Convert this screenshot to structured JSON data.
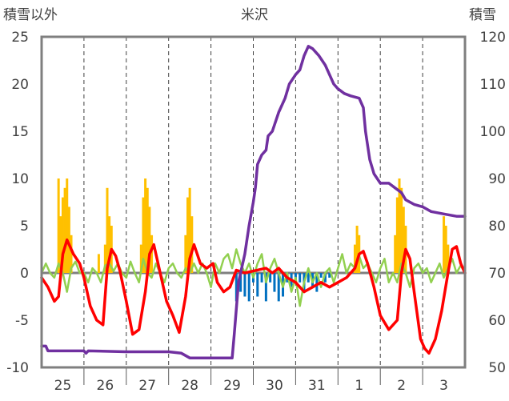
{
  "chart_data": {
    "type": "line",
    "title": "米沢",
    "y_left_label": "積雪以外",
    "y_right_label": "積雪",
    "y_left_range": [
      -10,
      25
    ],
    "y_right_range": [
      50,
      120
    ],
    "y_left_ticks": [
      "-10",
      "-5",
      "0",
      "5",
      "10",
      "15",
      "20",
      "25"
    ],
    "y_right_ticks": [
      "50",
      "60",
      "70",
      "80",
      "90",
      "100",
      "110",
      "120"
    ],
    "x_range": [
      0,
      10
    ],
    "x_ticks": [
      {
        "label": "25",
        "x": 0.5
      },
      {
        "label": "26",
        "x": 1.5
      },
      {
        "label": "27",
        "x": 2.5
      },
      {
        "label": "28",
        "x": 3.5
      },
      {
        "label": "29",
        "x": 4.5
      },
      {
        "label": "30",
        "x": 5.5
      },
      {
        "label": "31",
        "x": 6.5
      },
      {
        "label": "1",
        "x": 7.5
      },
      {
        "label": "2",
        "x": 8.5
      },
      {
        "label": "3",
        "x": 9.5
      }
    ],
    "grid": "vertical dashed at day boundaries",
    "colors": {
      "temperature": "#ff0000",
      "wind": "#92d050",
      "snow_depth": "#7030a0",
      "precip_bar": "#ffc000",
      "negative_bar": "#0070c0",
      "frame": "#7f7f7f"
    },
    "series": [
      {
        "role": "temperature",
        "axis": "left",
        "points": [
          [
            0.0,
            -0.5
          ],
          [
            0.15,
            -1.5
          ],
          [
            0.3,
            -3.0
          ],
          [
            0.4,
            -2.5
          ],
          [
            0.5,
            2.0
          ],
          [
            0.6,
            3.5
          ],
          [
            0.75,
            2.0
          ],
          [
            0.9,
            1.0
          ],
          [
            1.0,
            -0.5
          ],
          [
            1.15,
            -3.5
          ],
          [
            1.3,
            -5.0
          ],
          [
            1.45,
            -5.5
          ],
          [
            1.55,
            0.5
          ],
          [
            1.65,
            2.5
          ],
          [
            1.75,
            1.8
          ],
          [
            1.85,
            0.2
          ],
          [
            2.0,
            -3.0
          ],
          [
            2.15,
            -6.5
          ],
          [
            2.3,
            -6.0
          ],
          [
            2.45,
            -2.0
          ],
          [
            2.55,
            2.0
          ],
          [
            2.65,
            3.0
          ],
          [
            2.75,
            1.0
          ],
          [
            2.85,
            -1.0
          ],
          [
            2.95,
            -3.0
          ],
          [
            3.1,
            -4.5
          ],
          [
            3.25,
            -6.3
          ],
          [
            3.4,
            -2.5
          ],
          [
            3.5,
            1.5
          ],
          [
            3.6,
            3.0
          ],
          [
            3.75,
            1.0
          ],
          [
            3.9,
            0.5
          ],
          [
            4.05,
            1.0
          ],
          [
            4.15,
            -1.0
          ],
          [
            4.3,
            -2.0
          ],
          [
            4.45,
            -1.5
          ],
          [
            4.6,
            0.3
          ],
          [
            4.8,
            0.0
          ],
          [
            5.0,
            0.2
          ],
          [
            5.3,
            0.5
          ],
          [
            5.45,
            0.0
          ],
          [
            5.6,
            0.5
          ],
          [
            5.8,
            -0.5
          ],
          [
            6.0,
            -1.0
          ],
          [
            6.2,
            -2.0
          ],
          [
            6.4,
            -1.5
          ],
          [
            6.6,
            -1.0
          ],
          [
            6.8,
            -1.5
          ],
          [
            7.0,
            -1.0
          ],
          [
            7.2,
            -0.5
          ],
          [
            7.4,
            0.5
          ],
          [
            7.5,
            2.0
          ],
          [
            7.6,
            2.3
          ],
          [
            7.7,
            1.0
          ],
          [
            7.85,
            -1.5
          ],
          [
            8.0,
            -4.5
          ],
          [
            8.2,
            -6.0
          ],
          [
            8.4,
            -5.0
          ],
          [
            8.5,
            0.0
          ],
          [
            8.6,
            2.5
          ],
          [
            8.7,
            1.5
          ],
          [
            8.8,
            -2.0
          ],
          [
            8.95,
            -7.0
          ],
          [
            9.05,
            -8.0
          ],
          [
            9.15,
            -8.5
          ],
          [
            9.3,
            -7.0
          ],
          [
            9.45,
            -4.0
          ],
          [
            9.6,
            0.0
          ],
          [
            9.7,
            2.5
          ],
          [
            9.8,
            2.8
          ],
          [
            9.9,
            1.0
          ],
          [
            10.0,
            0.0
          ]
        ]
      },
      {
        "role": "wind",
        "axis": "left",
        "points": [
          [
            0.0,
            0.0
          ],
          [
            0.1,
            1.0
          ],
          [
            0.2,
            0.0
          ],
          [
            0.3,
            -0.5
          ],
          [
            0.4,
            1.0
          ],
          [
            0.5,
            0.0
          ],
          [
            0.6,
            -2.0
          ],
          [
            0.7,
            0.5
          ],
          [
            0.8,
            1.2
          ],
          [
            0.9,
            0.0
          ],
          [
            1.0,
            0.0
          ],
          [
            1.1,
            -1.0
          ],
          [
            1.2,
            0.5
          ],
          [
            1.3,
            0.0
          ],
          [
            1.4,
            -1.0
          ],
          [
            1.5,
            0.8
          ],
          [
            1.6,
            1.0
          ],
          [
            1.7,
            0.2
          ],
          [
            1.8,
            1.0
          ],
          [
            1.9,
            0.0
          ],
          [
            2.0,
            -0.5
          ],
          [
            2.1,
            1.2
          ],
          [
            2.2,
            0.0
          ],
          [
            2.3,
            -1.0
          ],
          [
            2.4,
            1.5
          ],
          [
            2.5,
            0.0
          ],
          [
            2.6,
            -0.5
          ],
          [
            2.7,
            1.0
          ],
          [
            2.8,
            0.0
          ],
          [
            2.9,
            -1.0
          ],
          [
            3.0,
            0.5
          ],
          [
            3.1,
            1.0
          ],
          [
            3.2,
            0.0
          ],
          [
            3.3,
            -0.5
          ],
          [
            3.4,
            0.5
          ],
          [
            3.5,
            0.0
          ],
          [
            3.6,
            1.0
          ],
          [
            3.7,
            0.0
          ],
          [
            3.8,
            1.0
          ],
          [
            3.9,
            0.0
          ],
          [
            4.0,
            -1.5
          ],
          [
            4.1,
            1.0
          ],
          [
            4.2,
            0.0
          ],
          [
            4.3,
            1.5
          ],
          [
            4.4,
            2.0
          ],
          [
            4.5,
            0.5
          ],
          [
            4.6,
            2.5
          ],
          [
            4.7,
            1.0
          ],
          [
            4.8,
            0.0
          ],
          [
            4.9,
            1.0
          ],
          [
            5.0,
            -0.5
          ],
          [
            5.1,
            1.0
          ],
          [
            5.2,
            2.0
          ],
          [
            5.3,
            -1.0
          ],
          [
            5.4,
            0.5
          ],
          [
            5.5,
            1.5
          ],
          [
            5.6,
            0.0
          ],
          [
            5.7,
            -1.5
          ],
          [
            5.8,
            0.0
          ],
          [
            5.9,
            -2.0
          ],
          [
            6.0,
            -0.5
          ],
          [
            6.1,
            -3.5
          ],
          [
            6.2,
            -1.0
          ],
          [
            6.3,
            0.5
          ],
          [
            6.4,
            -1.0
          ],
          [
            6.5,
            0.0
          ],
          [
            6.6,
            -1.5
          ],
          [
            6.7,
            0.0
          ],
          [
            6.8,
            0.5
          ],
          [
            6.9,
            -1.0
          ],
          [
            7.0,
            0.5
          ],
          [
            7.1,
            2.0
          ],
          [
            7.2,
            0.0
          ],
          [
            7.3,
            1.0
          ],
          [
            7.4,
            0.5
          ],
          [
            7.5,
            1.8
          ],
          [
            7.6,
            0.5
          ],
          [
            7.7,
            1.0
          ],
          [
            7.8,
            0.0
          ],
          [
            7.9,
            -1.0
          ],
          [
            8.0,
            0.5
          ],
          [
            8.1,
            1.5
          ],
          [
            8.2,
            -1.0
          ],
          [
            8.3,
            0.0
          ],
          [
            8.4,
            -1.0
          ],
          [
            8.5,
            1.0
          ],
          [
            8.6,
            0.0
          ],
          [
            8.7,
            -1.5
          ],
          [
            8.8,
            0.5
          ],
          [
            8.9,
            1.0
          ],
          [
            9.0,
            0.0
          ],
          [
            9.1,
            0.5
          ],
          [
            9.2,
            -1.0
          ],
          [
            9.3,
            0.0
          ],
          [
            9.4,
            1.0
          ],
          [
            9.5,
            -0.5
          ],
          [
            9.6,
            0.5
          ],
          [
            9.7,
            1.5
          ],
          [
            9.8,
            0.0
          ],
          [
            9.9,
            0.8
          ],
          [
            10.0,
            0.0
          ]
        ]
      },
      {
        "role": "snow_depth",
        "axis": "right",
        "points": [
          [
            0.0,
            54.5
          ],
          [
            0.1,
            54.5
          ],
          [
            0.15,
            53.5
          ],
          [
            1.0,
            53.5
          ],
          [
            1.05,
            53.0
          ],
          [
            1.1,
            53.5
          ],
          [
            2.0,
            53.3
          ],
          [
            3.0,
            53.3
          ],
          [
            3.3,
            53.0
          ],
          [
            3.5,
            52.0
          ],
          [
            4.0,
            52.0
          ],
          [
            4.1,
            52.0
          ],
          [
            4.5,
            52.0
          ],
          [
            4.55,
            57.0
          ],
          [
            4.65,
            68.0
          ],
          [
            4.8,
            74.0
          ],
          [
            4.9,
            80.0
          ],
          [
            5.0,
            85.0
          ],
          [
            5.05,
            88.0
          ],
          [
            5.1,
            93.0
          ],
          [
            5.2,
            95.0
          ],
          [
            5.3,
            96.0
          ],
          [
            5.35,
            99.0
          ],
          [
            5.45,
            100.0
          ],
          [
            5.6,
            104.0
          ],
          [
            5.75,
            107.0
          ],
          [
            5.85,
            110.0
          ],
          [
            6.0,
            112.0
          ],
          [
            6.1,
            113.0
          ],
          [
            6.2,
            116.0
          ],
          [
            6.3,
            118.0
          ],
          [
            6.4,
            117.5
          ],
          [
            6.55,
            116.0
          ],
          [
            6.7,
            114.0
          ],
          [
            6.8,
            112.0
          ],
          [
            6.9,
            110.0
          ],
          [
            7.0,
            109.0
          ],
          [
            7.15,
            108.0
          ],
          [
            7.3,
            107.5
          ],
          [
            7.5,
            107.0
          ],
          [
            7.6,
            105.0
          ],
          [
            7.65,
            100.0
          ],
          [
            7.75,
            94.0
          ],
          [
            7.85,
            91.0
          ],
          [
            8.0,
            89.0
          ],
          [
            8.2,
            89.0
          ],
          [
            8.35,
            88.0
          ],
          [
            8.5,
            87.0
          ],
          [
            8.6,
            85.5
          ],
          [
            8.8,
            84.5
          ],
          [
            9.0,
            84.0
          ],
          [
            9.2,
            83.0
          ],
          [
            9.5,
            82.5
          ],
          [
            9.8,
            82.0
          ],
          [
            10.0,
            82.0
          ]
        ]
      },
      {
        "role": "precip_bar",
        "axis": "left",
        "bars": [
          [
            0.4,
            10.0
          ],
          [
            0.45,
            6.0
          ],
          [
            0.5,
            8.0
          ],
          [
            0.55,
            9.0
          ],
          [
            0.6,
            10.0
          ],
          [
            0.65,
            7.0
          ],
          [
            0.7,
            4.0
          ],
          [
            1.35,
            2.0
          ],
          [
            1.5,
            3.0
          ],
          [
            1.55,
            9.0
          ],
          [
            1.6,
            6.0
          ],
          [
            1.65,
            5.0
          ],
          [
            2.35,
            3.0
          ],
          [
            2.4,
            8.0
          ],
          [
            2.45,
            10.0
          ],
          [
            2.5,
            9.0
          ],
          [
            2.55,
            7.0
          ],
          [
            2.6,
            4.0
          ],
          [
            3.4,
            4.0
          ],
          [
            3.45,
            8.0
          ],
          [
            3.5,
            9.0
          ],
          [
            3.55,
            6.0
          ],
          [
            7.4,
            3.0
          ],
          [
            7.45,
            5.0
          ],
          [
            7.5,
            4.0
          ],
          [
            8.35,
            4.0
          ],
          [
            8.4,
            8.0
          ],
          [
            8.45,
            10.0
          ],
          [
            8.5,
            9.0
          ],
          [
            8.55,
            7.0
          ],
          [
            8.6,
            5.0
          ],
          [
            9.5,
            6.0
          ],
          [
            9.55,
            5.0
          ],
          [
            9.6,
            3.0
          ]
        ]
      },
      {
        "role": "negative_bar",
        "axis": "left",
        "bars": [
          [
            4.6,
            -3.0
          ],
          [
            4.7,
            -2.0
          ],
          [
            4.8,
            -2.5
          ],
          [
            4.9,
            -3.0
          ],
          [
            5.0,
            -1.0
          ],
          [
            5.1,
            -2.5
          ],
          [
            5.2,
            -1.0
          ],
          [
            5.3,
            -3.0
          ],
          [
            5.4,
            -1.0
          ],
          [
            5.5,
            -2.0
          ],
          [
            5.6,
            -3.0
          ],
          [
            5.7,
            -2.5
          ],
          [
            5.8,
            -1.0
          ],
          [
            5.9,
            -1.5
          ],
          [
            6.0,
            -1.0
          ],
          [
            6.1,
            -1.0
          ],
          [
            6.2,
            -2.0
          ],
          [
            6.3,
            -1.0
          ],
          [
            6.4,
            -1.5
          ],
          [
            6.5,
            -2.0
          ],
          [
            6.6,
            -0.5
          ],
          [
            6.7,
            -1.0
          ],
          [
            6.8,
            -0.5
          ]
        ]
      }
    ]
  }
}
